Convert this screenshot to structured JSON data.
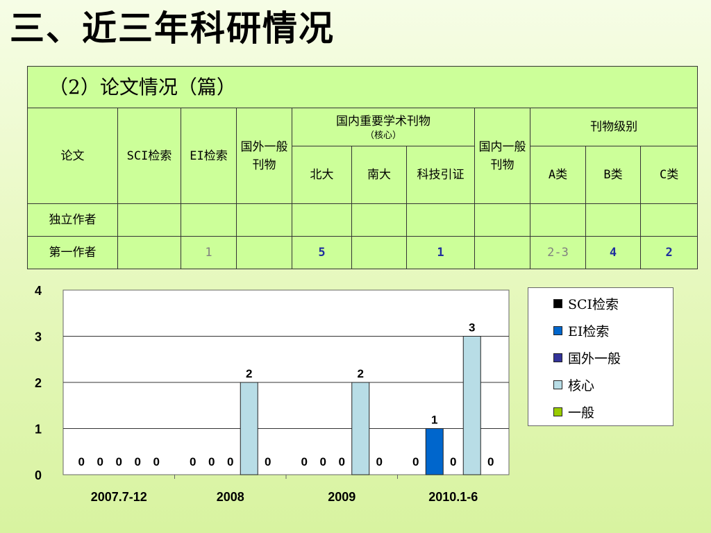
{
  "title": "三、近三年科研情况",
  "table": {
    "caption": "（2）论文情况（篇）",
    "head": {
      "paper": "论文",
      "sci": "SCI检索",
      "ei": "EI检索",
      "foreign": "国外一般刊物",
      "core_group": "国内重要学术刊物",
      "core_sub": "（核心）",
      "beida": "北大",
      "nanda": "南大",
      "keji": "科技引证",
      "domestic": "国内一般刊物",
      "level_group": "刊物级别",
      "a": "A类",
      "b": "B类",
      "c": "C类"
    },
    "rows": [
      {
        "label": "独立作者",
        "cells": [
          "",
          "",
          "",
          "",
          "",
          "",
          "",
          "",
          "",
          ""
        ]
      },
      {
        "label": "第一作者",
        "cells": [
          "",
          "1",
          "",
          "5",
          "",
          "1",
          "",
          "2-3",
          "4",
          "2"
        ]
      }
    ]
  },
  "chart_data": {
    "type": "bar",
    "categories": [
      "2007.7-12",
      "2008",
      "2009",
      "2010.1-6"
    ],
    "series": [
      {
        "name": "SCI检索",
        "values": [
          0,
          0,
          0,
          0
        ]
      },
      {
        "name": "EI检索",
        "values": [
          0,
          0,
          0,
          1
        ]
      },
      {
        "name": "国外一般",
        "values": [
          0,
          0,
          0,
          0
        ]
      },
      {
        "name": "核心",
        "values": [
          0,
          2,
          2,
          3
        ]
      },
      {
        "name": "一般",
        "values": [
          0,
          0,
          0,
          0
        ]
      }
    ],
    "colors": [
      "#000000",
      "#0066cc",
      "#333399",
      "#b8dde6",
      "#99cc00"
    ],
    "ylim": [
      0,
      4
    ],
    "yticks": [
      "0",
      "1",
      "2",
      "3",
      "4"
    ],
    "grid": true,
    "legend": "right"
  }
}
